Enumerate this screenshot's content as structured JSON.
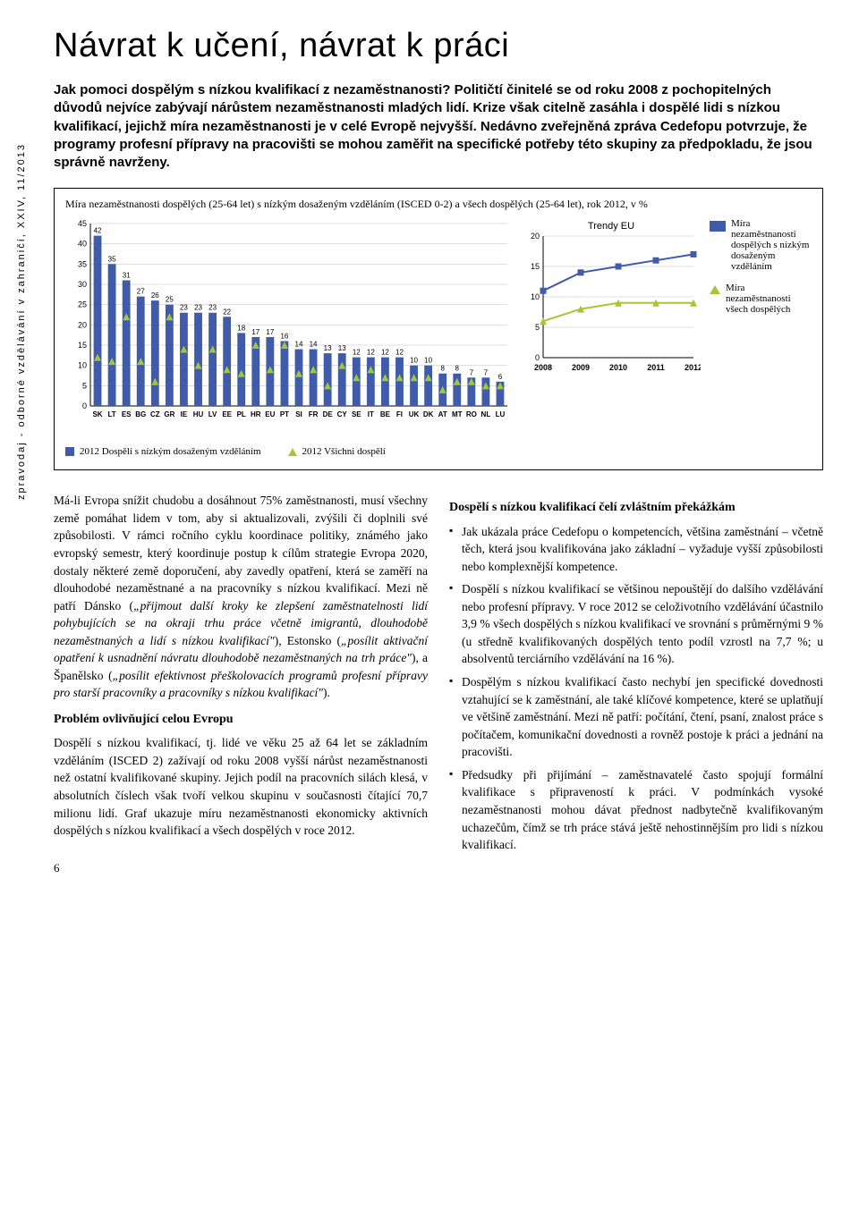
{
  "title": "Návrat k učení, návrat k práci",
  "lead": "Jak pomoci dospělým s nízkou kvalifikací z nezaměstnanosti? Političtí činitelé se od roku 2008 z pochopitelných důvodů nejvíce zabývají nárůstem nezaměstnanosti mladých lidí. Krize však citelně zasáhla i dospělé lidi s nízkou kvalifikací, jejichž míra nezaměstnanosti je v celé Evropě nejvyšší. Nedávno zveřejněná zpráva Cedefopu potvrzuje, že programy profesní přípravy na pracovišti se mohou zaměřit na specifické potřeby této skupiny za předpokladu, že jsou správně navrženy.",
  "chart": {
    "title": "Míra nezaměstnanosti dospělých (25-64 let) s nízkým dosaženým vzděláním (ISCED 0-2) a všech dospělých (25-64 let), rok 2012, v %",
    "main": {
      "categories": [
        "SK",
        "LT",
        "ES",
        "BG",
        "CZ",
        "GR",
        "IE",
        "HU",
        "LV",
        "EE",
        "PL",
        "HR",
        "EU",
        "PT",
        "SI",
        "FR",
        "DE",
        "CY",
        "SE",
        "IT",
        "BE",
        "FI",
        "UK",
        "DK",
        "AT",
        "MT",
        "RO",
        "NL",
        "LU"
      ],
      "bars": [
        42,
        35,
        31,
        27,
        26,
        25,
        23,
        23,
        23,
        22,
        18,
        17,
        17,
        16,
        14,
        14,
        13,
        13,
        12,
        12,
        12,
        12,
        10,
        10,
        8,
        8,
        7,
        7,
        6
      ],
      "triangles": [
        12,
        11,
        22,
        11,
        6,
        22,
        14,
        10,
        14,
        9,
        8,
        15,
        9,
        15,
        8,
        9,
        5,
        10,
        7,
        9,
        7,
        7,
        7,
        7,
        4,
        6,
        6,
        5,
        5
      ],
      "ymax": 45,
      "ystep": 5,
      "bar_color": "#3f5ba9",
      "triangle_color": "#a4c639",
      "grid_color": "#bfbfbf",
      "axis_label_fontsize": 9,
      "value_label_fontsize": 8
    },
    "side": {
      "title": "Trendy EU",
      "years": [
        2008,
        2009,
        2010,
        2011,
        2012
      ],
      "series_low": [
        11,
        14,
        15,
        16,
        17
      ],
      "series_all": [
        6,
        8,
        9,
        9,
        9
      ],
      "ymax": 20,
      "ystep": 5,
      "low_color": "#3f5ba9",
      "all_color": "#a4c639",
      "grid_color": "#bfbfbf"
    },
    "legend": {
      "low": "Míra nezaměstnanosti dospělých s nízkým dosaženým vzděláním",
      "all": "Míra nezaměstnanosti všech dospělých",
      "bottom_low": "2012 Dospělí s nízkým dosaženým vzděláním",
      "bottom_all": "2012 Všichni dospělí"
    }
  },
  "col1": {
    "p1a": "Má-li Evropa snížit chudobu a dosáhnout 75% zaměstnanosti, musí všechny země pomáhat lidem v tom, aby si aktualizovali, zvýšili či doplnili své způsobilosti. V rámci ročního cyklu koordinace politiky, známého jako evropský semestr, který koordinuje postup k cílům strategie Evropa 2020, dostaly některé země doporučení, aby zavedly opatření, která se zaměří na dlouhodobé nezaměstnané a na pracovníky s nízkou kvalifikací. Mezi ně patří Dánsko (",
    "p1it1": "„přijmout další kroky ke zlepšení zaměstnatelnosti lidí pohybujících se na okraji trhu práce včetně imigrantů, dlouhodobě nezaměstnaných a lidí s nízkou kvalifikací\"",
    "p1b": "), Estonsko (",
    "p1it2": "„posílit aktivační opatření k usnadnění návratu dlouhodobě nezaměstnaných na trh práce\"",
    "p1c": "), a Španělsko (",
    "p1it3": "„posílit efektivnost přeškolovacích programů profesní přípravy pro starší pracovníky a pracovníky s nízkou kvalifikací\"",
    "p1d": ").",
    "h1": "Problém ovlivňující celou Evropu",
    "p2": "Dospělí s nízkou kvalifikací, tj. lidé ve věku 25 až 64 let se základním vzděláním (ISCED 2) zažívají od roku 2008 vyšší nárůst nezaměstnanosti než ostatní kvalifikované skupiny. Jejich podíl na pracovních silách klesá, v absolutních číslech však tvoří velkou skupinu v současnosti čítající 70,7 milionu lidí. Graf ukazuje míru nezaměstnanosti ekonomicky aktivních dospělých s nízkou kvalifikací a všech dospělých v roce 2012."
  },
  "col2": {
    "h1": "Dospělí s nízkou kvalifikací čelí zvláštním překážkám",
    "b1": "Jak ukázala práce Cedefopu o kompetencích, většina zaměstnání – včetně těch, která jsou kvalifikována jako základní – vyžaduje vyšší způsobilosti nebo komplexnější kompetence.",
    "b2": "Dospělí s nízkou kvalifikací se většinou nepouštějí do dalšího vzdělávání nebo profesní přípravy. V roce 2012 se celoživotního vzdělávání účastnilo 3,9 % všech dospělých s nízkou kvalifikací ve srovnání s průměrnými 9 % (u středně kvalifikovaných dospělých tento podíl vzrostl na 7,7 %; u absolventů terciárního vzdělávání na 16 %).",
    "b3": "Dospělým s nízkou kvalifikací často nechybí jen specifické dovednosti vztahující se k zaměstnání, ale také klíčové kompetence, které se uplatňují ve většině zaměstnání. Mezi ně patří: počítání, čtení, psaní, znalost práce s počítačem, komunikační dovednosti a rovněž postoje k práci a jednání na pracovišti.",
    "b4": "Předsudky při přijímání – zaměstnavatelé často spojují formální kvalifikace s připraveností k práci. V podmínkách vysoké nezaměstnanosti mohou dávat přednost nadbytečně kvalifikovaným uchazečům, čímž se trh práce stává ještě nehostinnějším pro lidi s nízkou kvalifikací."
  },
  "spine": "zpravodaj - odborné vzdělávání v zahraničí, XXIV, 11/2013",
  "pagenum": "6"
}
